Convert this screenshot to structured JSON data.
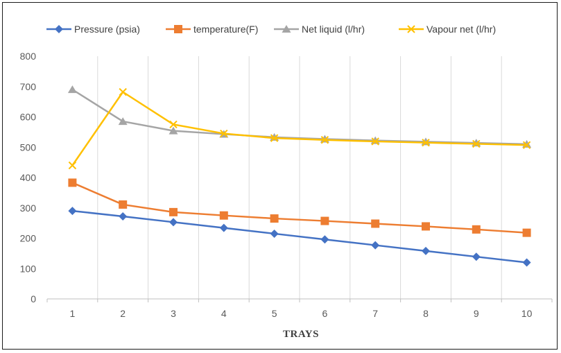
{
  "chart_data": {
    "type": "line",
    "title": "",
    "xlabel": "TRAYS",
    "ylabel": "",
    "categories": [
      "1",
      "2",
      "3",
      "4",
      "5",
      "6",
      "7",
      "8",
      "9",
      "10"
    ],
    "ylim": [
      0,
      800
    ],
    "yticks": [
      0,
      100,
      200,
      300,
      400,
      500,
      600,
      700,
      800
    ],
    "grid": "vertical",
    "legend_position": "top",
    "series": [
      {
        "name": "Pressure (psia)",
        "color": "#4472C4",
        "marker": "diamond",
        "values": [
          290,
          272,
          253,
          234,
          215,
          196,
          177,
          158,
          139,
          120
        ]
      },
      {
        "name": "temperature(F)",
        "color": "#ED7D31",
        "marker": "square",
        "values": [
          383,
          311,
          286,
          275,
          265,
          257,
          248,
          239,
          229,
          218
        ]
      },
      {
        "name": "Net liquid (l/hr)",
        "color": "#A5A5A5",
        "marker": "triangle",
        "values": [
          690,
          585,
          554,
          543,
          533,
          527,
          522,
          518,
          514,
          510
        ]
      },
      {
        "name": "Vapour net (l/hr)",
        "color": "#FFC000",
        "marker": "x",
        "values": [
          440,
          682,
          575,
          545,
          530,
          524,
          519,
          515,
          511,
          507
        ]
      }
    ]
  }
}
